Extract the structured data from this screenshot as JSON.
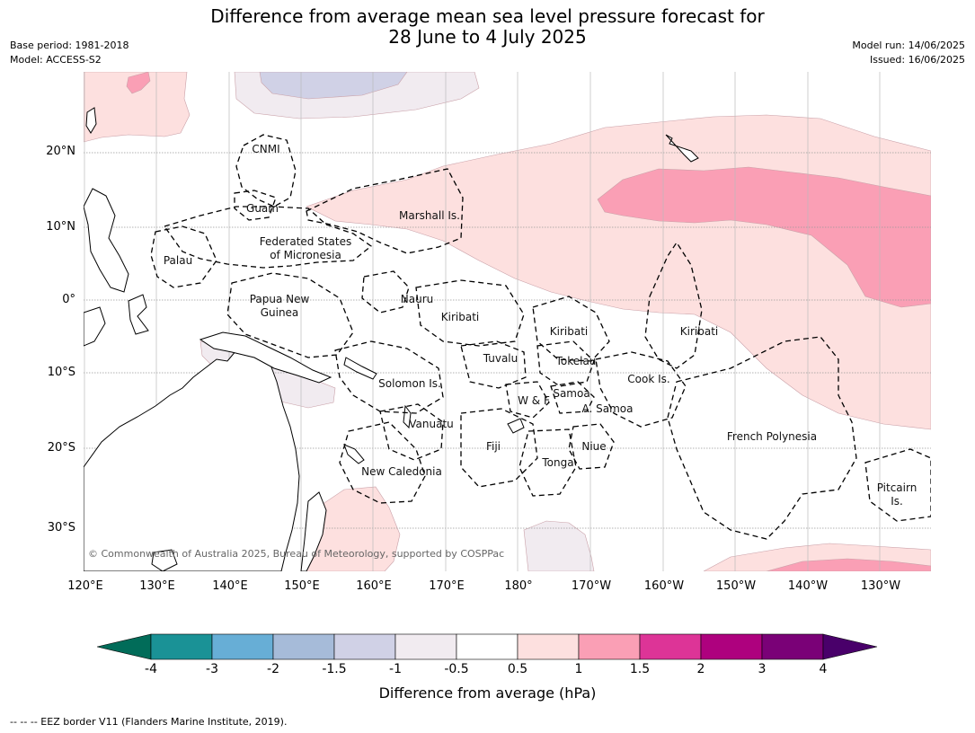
{
  "title_line1": "Difference from average mean sea level pressure forecast for",
  "title_line2": "28 June to 4 July 2025",
  "base_period": "Base period: 1981-2018",
  "model": "Model: ACCESS-S2",
  "model_run": "Model run: 14/06/2025",
  "issued": "Issued: 16/06/2025",
  "lat_labels": [
    "20°N",
    "10°N",
    "0°",
    "10°S",
    "20°S",
    "30°S"
  ],
  "lon_labels": [
    "120°E",
    "130°E",
    "140°E",
    "150°E",
    "160°E",
    "170°E",
    "180°",
    "170°W",
    "160°W",
    "150°W",
    "140°W",
    "130°W"
  ],
  "places": {
    "cnmi": "CNMI",
    "guam": "Guam",
    "marshall": "Marshall Is.",
    "fsm1": "Federated States",
    "fsm2": "of Micronesia",
    "palau": "Palau",
    "png1": "Papua New",
    "png2": "Guinea",
    "nauru": "Nauru",
    "kiribati_w": "Kiribati",
    "kiribati_c": "Kiribati",
    "kiribati_e": "Kiribati",
    "tuvalu": "Tuvalu",
    "tokelau": "Tokelau",
    "cook": "Cook Is.",
    "solomon": "Solomon Is.",
    "samoa": "Samoa",
    "wf": "W & F",
    "asamoa": "A. Samoa",
    "vanuatu": "Vanuatu",
    "fiji": "Fiji",
    "niue": "Niue",
    "tonga": "Tonga",
    "frenchpoly": "French Polynesia",
    "newcal": "New Caledonia",
    "pitcairn1": "Pitcairn",
    "pitcairn2": "Is."
  },
  "copyright": "© Commonwealth of Australia 2025, Bureau of Meteorology, supported by COSPPac",
  "colorbar": {
    "ticks": [
      "-4",
      "-3",
      "-2",
      "-1.5",
      "-1",
      "-0.5",
      "0.5",
      "1",
      "1.5",
      "2",
      "3",
      "4"
    ],
    "colors": [
      "#1a9296",
      "#67aed6",
      "#a6bbd9",
      "#d0d1e6",
      "#f1ebf0",
      "#ffffff",
      "#fde0df",
      "#fa9fb5",
      "#dd3497",
      "#ae017e",
      "#7a0177"
    ],
    "under_color": "#016c59",
    "over_color": "#49006a",
    "label": "Difference from average (hPa)"
  },
  "legend_note": "--  --  -- EEZ border V11 (Flanders Marine Institute, 2019)."
}
